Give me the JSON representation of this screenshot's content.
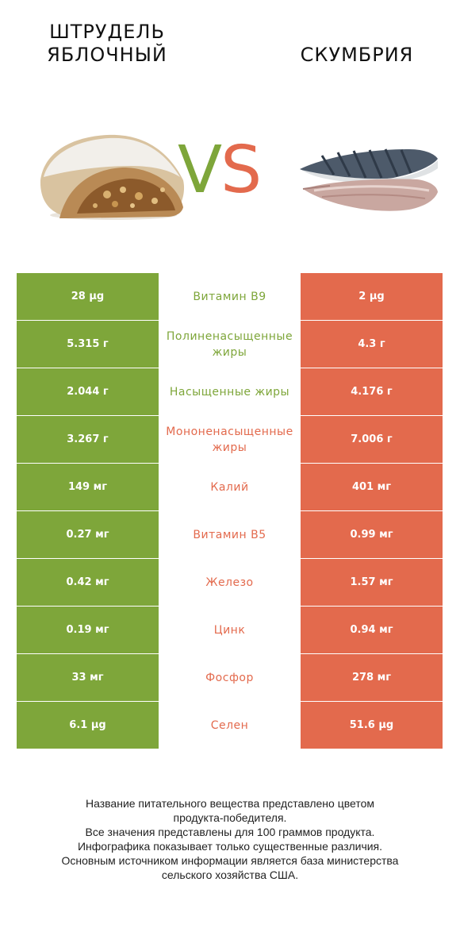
{
  "left_food": {
    "name": "ШТРУДЕЛЬ ЯБЛОЧНЫЙ",
    "name_line1": "ШТРУДЕЛЬ",
    "name_line2": "ЯБЛОЧНЫЙ"
  },
  "right_food": {
    "name": "СКУМБРИЯ"
  },
  "vs": {
    "v": "V",
    "s": "S"
  },
  "colors": {
    "left_winner": "#7ea63a",
    "right_winner": "#e36a4d"
  },
  "rows": [
    {
      "nutrient": "Витамин B9",
      "left": "28 µg",
      "right": "2 µg",
      "winner": "left"
    },
    {
      "nutrient": "Полиненасыщенные жиры",
      "left": "5.315 г",
      "right": "4.3 г",
      "winner": "left"
    },
    {
      "nutrient": "Насыщенные жиры",
      "left": "2.044 г",
      "right": "4.176 г",
      "winner": "left"
    },
    {
      "nutrient": "Мононенасыщенные жиры",
      "left": "3.267 г",
      "right": "7.006 г",
      "winner": "right"
    },
    {
      "nutrient": "Калий",
      "left": "149 мг",
      "right": "401 мг",
      "winner": "right"
    },
    {
      "nutrient": "Витамин B5",
      "left": "0.27 мг",
      "right": "0.99 мг",
      "winner": "right"
    },
    {
      "nutrient": "Железо",
      "left": "0.42 мг",
      "right": "1.57 мг",
      "winner": "right"
    },
    {
      "nutrient": "Цинк",
      "left": "0.19 мг",
      "right": "0.94 мг",
      "winner": "right"
    },
    {
      "nutrient": "Фосфор",
      "left": "33 мг",
      "right": "278 мг",
      "winner": "right"
    },
    {
      "nutrient": "Селен",
      "left": "6.1 µg",
      "right": "51.6 µg",
      "winner": "right"
    }
  ],
  "footer": {
    "line1": "Название питательного вещества представлено цветом",
    "line2": "продукта-победителя.",
    "line3": "Все значения представлены для 100 граммов продукта.",
    "line4": "Инфографика показывает только существенные различия.",
    "line5": "Основным источником информации является база министерства",
    "line6": "сельского хозяйства США."
  }
}
